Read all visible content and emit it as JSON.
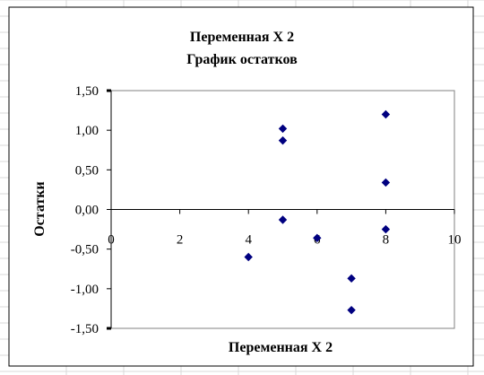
{
  "chart_data": {
    "type": "scatter",
    "title": "Переменная X 2",
    "subtitle": "График остатков",
    "xlabel": "Переменная X 2",
    "ylabel": "Остатки",
    "xlim": [
      0,
      10
    ],
    "ylim": [
      -1.5,
      1.5
    ],
    "x_ticks": [
      0,
      2,
      4,
      6,
      8,
      10
    ],
    "x_tick_labels": [
      "0",
      "2",
      "4",
      "6",
      "8",
      "10"
    ],
    "y_ticks": [
      1.5,
      1.0,
      0.5,
      0.0,
      -0.5,
      -1.0,
      -1.5
    ],
    "y_tick_labels": [
      "1,50",
      "1,00",
      "0,50",
      "0,00",
      "-0,50",
      "-1,00",
      "-1,50"
    ],
    "grid": false,
    "legend": "none",
    "marker": "diamond",
    "marker_color": "#000080",
    "series": [
      {
        "x": [
          4,
          5,
          5,
          5,
          6,
          7,
          7,
          8,
          8,
          8
        ],
        "y": [
          -0.6,
          1.02,
          0.87,
          -0.13,
          -0.36,
          -0.87,
          -1.27,
          1.2,
          0.34,
          -0.25
        ]
      }
    ]
  }
}
